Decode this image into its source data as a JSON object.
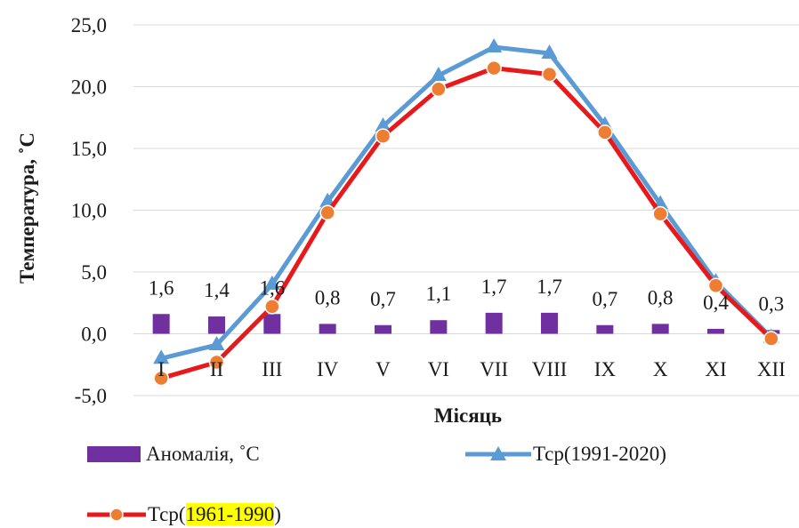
{
  "chart_data": {
    "type": "bar+line",
    "ylabel": "Температура, ˚С",
    "xlabel": "Місяць",
    "ylim": [
      -5,
      25
    ],
    "yticks": [
      -5,
      0,
      5,
      10,
      15,
      20,
      25
    ],
    "ytick_labels": [
      "-5,0",
      "0,0",
      "5,0",
      "10,0",
      "15,0",
      "20,0",
      "25,0"
    ],
    "categories": [
      "I",
      "II",
      "III",
      "IV",
      "V",
      "VI",
      "VII",
      "VIII",
      "IX",
      "X",
      "XI",
      "XII"
    ],
    "grid": true,
    "legend_position": "bottom",
    "series": [
      {
        "name": "Аномалія, ˚С",
        "kind": "bar",
        "color": "#7030a0",
        "values": [
          1.6,
          1.4,
          1.6,
          0.8,
          0.7,
          1.1,
          1.7,
          1.7,
          0.7,
          0.8,
          0.4,
          0.3
        ],
        "data_labels": [
          "1,6",
          "1,4",
          "1,6",
          "0,8",
          "0,7",
          "1,1",
          "1,7",
          "1,7",
          "0,7",
          "0,8",
          "0,4",
          "0,3"
        ]
      },
      {
        "name": "Тср(1991-2020)",
        "kind": "line",
        "marker": "triangle",
        "color": "#5b9bd5",
        "values": [
          -2.0,
          -0.9,
          4.0,
          10.7,
          16.8,
          20.9,
          23.2,
          22.7,
          16.9,
          10.5,
          4.2,
          -0.3
        ]
      },
      {
        "name": "Тср(1961-1990)",
        "kind": "line",
        "marker": "circle",
        "color": "#e8191b",
        "marker_color": "#ed7d31",
        "values": [
          -3.6,
          -2.3,
          2.2,
          9.8,
          16.0,
          19.8,
          21.5,
          21.0,
          16.3,
          9.7,
          3.9,
          -0.4
        ]
      }
    ]
  },
  "legend": {
    "bar_label": "Аномалія, ˚С",
    "line1_label": "Тср(1991-2020)",
    "line2_prefix": "Тср(",
    "line2_highlight": "1961-1990",
    "line2_suffix": ")"
  }
}
